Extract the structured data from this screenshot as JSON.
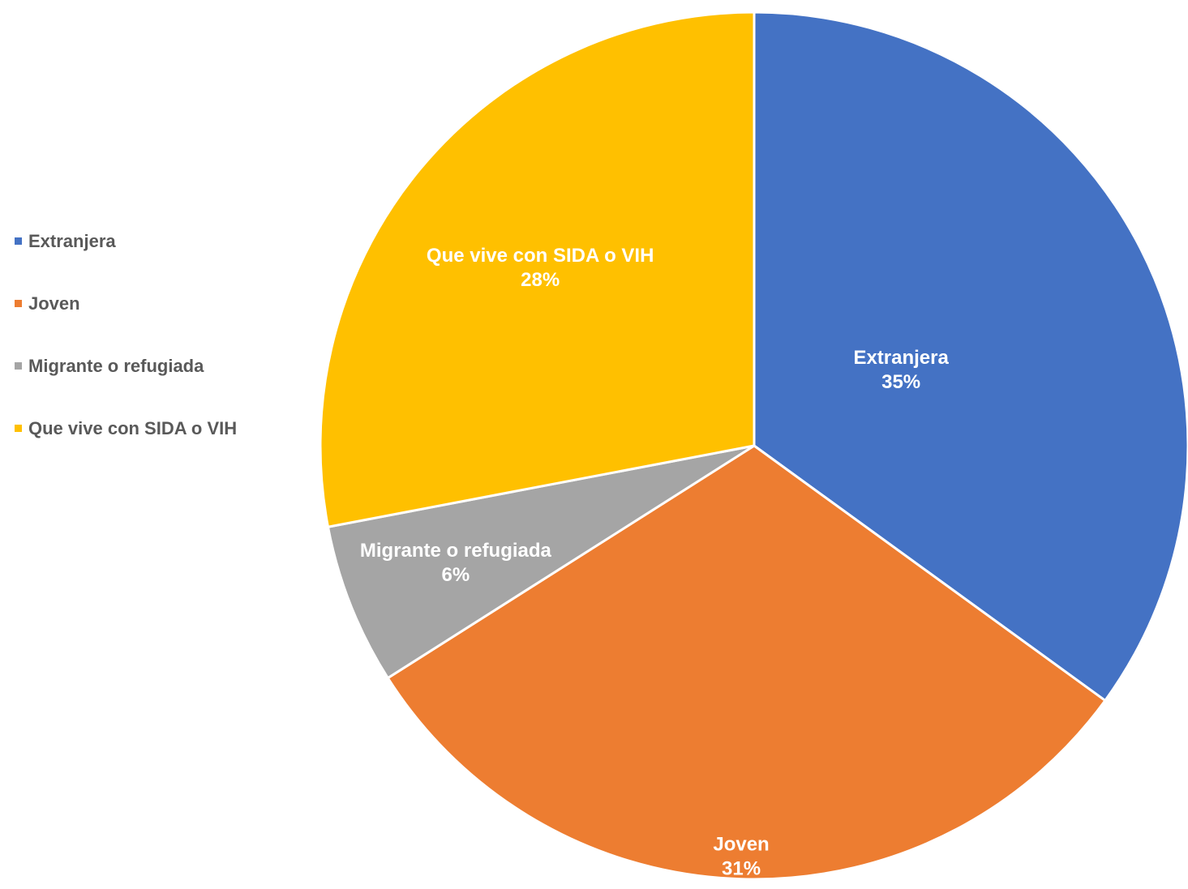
{
  "chart_data": {
    "type": "pie",
    "categories": [
      "Extranjera",
      "Joven",
      "Migrante o refugiada",
      "Que vive con SIDA o VIH"
    ],
    "values": [
      35,
      31,
      6,
      28
    ],
    "value_labels": [
      "35%",
      "31%",
      "6%",
      "28%"
    ],
    "colors": [
      "#4472c4",
      "#ed7d31",
      "#a5a5a5",
      "#ffc000"
    ],
    "legend": "left"
  }
}
